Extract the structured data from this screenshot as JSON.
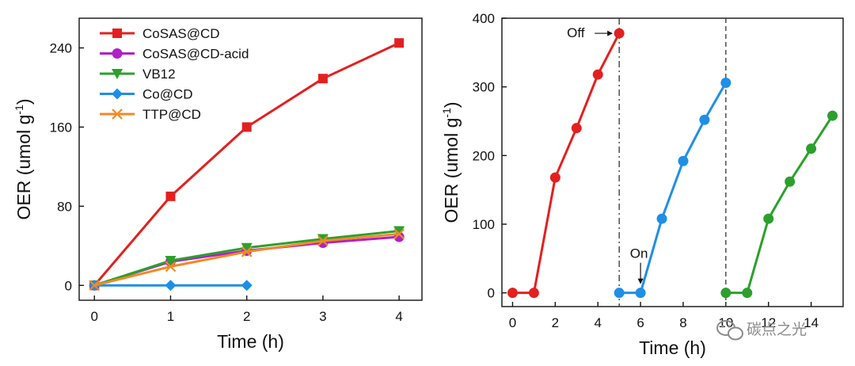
{
  "watermark": {
    "text": "碳点之光",
    "icon": "wechat-icon"
  },
  "chart_data": [
    {
      "type": "line",
      "xlabel": "Time (h)",
      "ylabel": "OER (umol g",
      "ylabel_sup": "-1",
      "ylabel_close": ")",
      "xlim": [
        -0.2,
        4.3
      ],
      "ylim": [
        -15,
        270
      ],
      "xticks": [
        0,
        1,
        2,
        3,
        4
      ],
      "yticks": [
        0,
        80,
        160,
        240
      ],
      "legend_position": "top-left",
      "series": [
        {
          "name": "CoSAS@CD",
          "marker": "square",
          "color": "#e32020",
          "x": [
            0,
            1,
            2,
            3,
            4
          ],
          "y": [
            0,
            90,
            160,
            209,
            245
          ]
        },
        {
          "name": "CoSAS@CD-acid",
          "marker": "circle",
          "color": "#b020c8",
          "x": [
            0,
            1,
            2,
            3,
            4
          ],
          "y": [
            0,
            24,
            35,
            43,
            49
          ]
        },
        {
          "name": "VB12",
          "marker": "triangle-down",
          "color": "#2ca02c",
          "x": [
            0,
            1,
            2,
            3,
            4
          ],
          "y": [
            0,
            25,
            38,
            47,
            55
          ]
        },
        {
          "name": "Co@CD",
          "marker": "diamond",
          "color": "#1e8fe6",
          "x": [
            0,
            1,
            2
          ],
          "y": [
            0,
            0,
            0
          ]
        },
        {
          "name": "TTP@CD",
          "marker": "x",
          "color": "#f08a24",
          "x": [
            0,
            1,
            2,
            3,
            4
          ],
          "y": [
            0,
            19,
            34,
            45,
            52
          ]
        }
      ]
    },
    {
      "type": "line",
      "xlabel": "Time (h)",
      "ylabel": "OER (umol g",
      "ylabel_sup": "-1",
      "ylabel_close": ")",
      "xlim": [
        -0.5,
        15.5
      ],
      "ylim": [
        -20,
        400
      ],
      "xticks": [
        0,
        2,
        4,
        6,
        8,
        10,
        12,
        14
      ],
      "yticks": [
        0,
        100,
        200,
        300,
        400
      ],
      "vlines": [
        {
          "x": 5,
          "style": "dash-dot"
        },
        {
          "x": 10,
          "style": "dash"
        }
      ],
      "annotations": [
        {
          "text": "Off",
          "x": 5,
          "y": 378
        },
        {
          "text": "On",
          "x": 6,
          "y": 0
        }
      ],
      "series": [
        {
          "color": "#e32020",
          "marker": "circle",
          "x": [
            0,
            1,
            2,
            3,
            4,
            5
          ],
          "y": [
            0,
            0,
            168,
            240,
            318,
            378
          ]
        },
        {
          "color": "#1e8fe6",
          "marker": "circle",
          "x": [
            5,
            6,
            7,
            8,
            9,
            10
          ],
          "y": [
            0,
            0,
            108,
            192,
            252,
            306
          ]
        },
        {
          "color": "#2ca02c",
          "marker": "circle",
          "x": [
            10,
            11,
            12,
            13,
            14,
            15
          ],
          "y": [
            0,
            0,
            108,
            162,
            210,
            258
          ]
        }
      ]
    }
  ]
}
